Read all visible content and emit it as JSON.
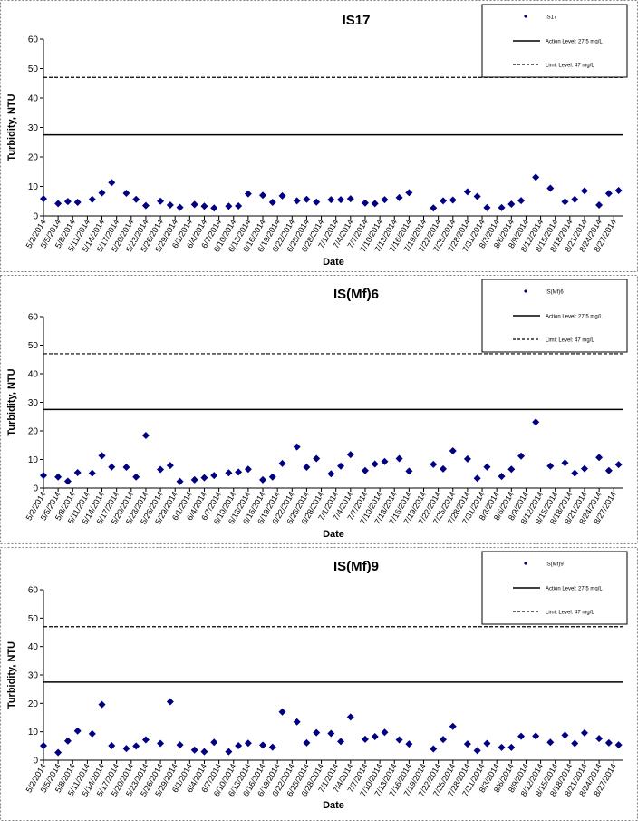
{
  "chart_data": [
    {
      "type": "scatter",
      "title": "IS17",
      "xlabel": "Date",
      "ylabel": "Turbidity, NTU",
      "ylim": [
        0,
        60
      ],
      "yticks": [
        0,
        10,
        20,
        30,
        40,
        50,
        60
      ],
      "xlim": [
        "5/2/2014",
        "8/29/2014"
      ],
      "xtick_labels": [
        "5/2/2014",
        "5/5/2014",
        "5/8/2014",
        "5/11/2014",
        "5/14/2014",
        "5/17/2014",
        "5/20/2014",
        "5/23/2014",
        "5/26/2014",
        "5/29/2014",
        "6/1/2014",
        "6/4/2014",
        "6/7/2014",
        "6/10/2014",
        "6/13/2014",
        "6/16/2014",
        "6/19/2014",
        "6/22/2014",
        "6/25/2014",
        "6/28/2014",
        "7/1/2014",
        "7/4/2014",
        "7/7/2014",
        "7/10/2014",
        "7/13/2014",
        "7/16/2014",
        "7/19/2014",
        "7/22/2014",
        "7/25/2014",
        "7/28/2014",
        "7/31/2014",
        "8/3/2014",
        "8/6/2014",
        "8/9/2014",
        "8/12/2014",
        "8/15/2014",
        "8/18/2014",
        "8/21/2014",
        "8/24/2014",
        "8/27/2014"
      ],
      "action_level": 27.5,
      "limit_level": 47,
      "legend": {
        "placement": "top-right",
        "series_label": "IS17",
        "action_label": "Action Level: 27.5 mg/L",
        "limit_label": "Limit Level: 47 mg/L"
      },
      "marker_color": "#000080",
      "points": [
        [
          "5/2/2014",
          5.8
        ],
        [
          "5/5/2014",
          4.2
        ],
        [
          "5/7/2014",
          4.9
        ],
        [
          "5/9/2014",
          4.6
        ],
        [
          "5/12/2014",
          5.6
        ],
        [
          "5/14/2014",
          7.8
        ],
        [
          "5/16/2014",
          11.3
        ],
        [
          "5/19/2014",
          7.7
        ],
        [
          "5/21/2014",
          5.6
        ],
        [
          "5/23/2014",
          3.5
        ],
        [
          "5/26/2014",
          5.0
        ],
        [
          "5/28/2014",
          3.7
        ],
        [
          "5/30/2014",
          2.9
        ],
        [
          "6/2/2014",
          3.9
        ],
        [
          "6/4/2014",
          3.3
        ],
        [
          "6/6/2014",
          2.7
        ],
        [
          "6/9/2014",
          3.3
        ],
        [
          "6/11/2014",
          3.4
        ],
        [
          "6/13/2014",
          7.5
        ],
        [
          "6/16/2014",
          7.0
        ],
        [
          "6/18/2014",
          4.6
        ],
        [
          "6/20/2014",
          6.8
        ],
        [
          "6/23/2014",
          5.1
        ],
        [
          "6/25/2014",
          5.6
        ],
        [
          "6/27/2014",
          4.7
        ],
        [
          "6/30/2014",
          5.5
        ],
        [
          "7/2/2014",
          5.5
        ],
        [
          "7/4/2014",
          5.8
        ],
        [
          "7/7/2014",
          4.4
        ],
        [
          "7/9/2014",
          4.2
        ],
        [
          "7/11/2014",
          5.5
        ],
        [
          "7/14/2014",
          6.2
        ],
        [
          "7/16/2014",
          7.9
        ],
        [
          "7/21/2014",
          2.7
        ],
        [
          "7/23/2014",
          5.1
        ],
        [
          "7/25/2014",
          5.4
        ],
        [
          "7/28/2014",
          8.2
        ],
        [
          "7/30/2014",
          6.6
        ],
        [
          "8/1/2014",
          2.8
        ],
        [
          "8/4/2014",
          2.8
        ],
        [
          "8/6/2014",
          4.0
        ],
        [
          "8/8/2014",
          5.2
        ],
        [
          "8/11/2014",
          13.1
        ],
        [
          "8/14/2014",
          9.4
        ],
        [
          "8/17/2014",
          4.8
        ],
        [
          "8/19/2014",
          5.6
        ],
        [
          "8/21/2014",
          8.5
        ],
        [
          "8/24/2014",
          3.7
        ],
        [
          "8/26/2014",
          7.6
        ],
        [
          "8/28/2014",
          8.6
        ]
      ]
    },
    {
      "type": "scatter",
      "title": "IS(Mf)6",
      "xlabel": "Date",
      "ylabel": "Turbidity, NTU",
      "ylim": [
        0,
        60
      ],
      "yticks": [
        0,
        10,
        20,
        30,
        40,
        50,
        60
      ],
      "xlim": [
        "5/2/2014",
        "8/29/2014"
      ],
      "xtick_labels": [
        "5/2/2014",
        "5/5/2014",
        "5/8/2014",
        "5/11/2014",
        "5/14/2014",
        "5/17/2014",
        "5/20/2014",
        "5/23/2014",
        "5/26/2014",
        "5/29/2014",
        "6/1/2014",
        "6/4/2014",
        "6/7/2014",
        "6/10/2014",
        "6/13/2014",
        "6/16/2014",
        "6/19/2014",
        "6/22/2014",
        "6/25/2014",
        "6/28/2014",
        "7/1/2014",
        "7/4/2014",
        "7/7/2014",
        "7/10/2014",
        "7/13/2014",
        "7/16/2014",
        "7/19/2014",
        "7/22/2014",
        "7/25/2014",
        "7/28/2014",
        "7/31/2014",
        "8/3/2014",
        "8/6/2014",
        "8/9/2014",
        "8/12/2014",
        "8/15/2014",
        "8/18/2014",
        "8/21/2014",
        "8/24/2014",
        "8/27/2014"
      ],
      "action_level": 27.5,
      "limit_level": 47,
      "legend": {
        "placement": "top-right",
        "series_label": "IS(Mf)6",
        "action_label": "Action Level: 27.5 mg/L",
        "limit_label": "Limit Level: 47 mg/L"
      },
      "marker_color": "#000080",
      "points": [
        [
          "5/2/2014",
          4.4
        ],
        [
          "5/5/2014",
          3.9
        ],
        [
          "5/7/2014",
          2.4
        ],
        [
          "5/9/2014",
          5.4
        ],
        [
          "5/12/2014",
          5.2
        ],
        [
          "5/14/2014",
          11.3
        ],
        [
          "5/16/2014",
          7.4
        ],
        [
          "5/19/2014",
          7.3
        ],
        [
          "5/21/2014",
          3.9
        ],
        [
          "5/23/2014",
          18.4
        ],
        [
          "5/26/2014",
          6.5
        ],
        [
          "5/28/2014",
          7.9
        ],
        [
          "5/30/2014",
          2.3
        ],
        [
          "6/2/2014",
          2.9
        ],
        [
          "6/4/2014",
          3.6
        ],
        [
          "6/6/2014",
          4.4
        ],
        [
          "6/9/2014",
          5.3
        ],
        [
          "6/11/2014",
          5.6
        ],
        [
          "6/13/2014",
          6.6
        ],
        [
          "6/16/2014",
          2.9
        ],
        [
          "6/18/2014",
          3.9
        ],
        [
          "6/20/2014",
          8.6
        ],
        [
          "6/23/2014",
          14.4
        ],
        [
          "6/25/2014",
          7.3
        ],
        [
          "6/27/2014",
          10.3
        ],
        [
          "6/30/2014",
          5.0
        ],
        [
          "7/2/2014",
          7.7
        ],
        [
          "7/4/2014",
          11.7
        ],
        [
          "7/7/2014",
          6.1
        ],
        [
          "7/9/2014",
          8.4
        ],
        [
          "7/11/2014",
          9.3
        ],
        [
          "7/14/2014",
          10.3
        ],
        [
          "7/16/2014",
          5.9
        ],
        [
          "7/21/2014",
          8.3
        ],
        [
          "7/23/2014",
          6.7
        ],
        [
          "7/25/2014",
          13.0
        ],
        [
          "7/28/2014",
          10.2
        ],
        [
          "7/30/2014",
          3.4
        ],
        [
          "8/1/2014",
          7.4
        ],
        [
          "8/4/2014",
          4.1
        ],
        [
          "8/6/2014",
          6.6
        ],
        [
          "8/8/2014",
          11.2
        ],
        [
          "8/11/2014",
          23.1
        ],
        [
          "8/14/2014",
          7.7
        ],
        [
          "8/17/2014",
          8.8
        ],
        [
          "8/19/2014",
          5.2
        ],
        [
          "8/21/2014",
          6.8
        ],
        [
          "8/24/2014",
          10.7
        ],
        [
          "8/26/2014",
          6.1
        ],
        [
          "8/28/2014",
          8.2
        ]
      ]
    },
    {
      "type": "scatter",
      "title": "IS(Mf)9",
      "xlabel": "Date",
      "ylabel": "Turbidity, NTU",
      "ylim": [
        0,
        60
      ],
      "yticks": [
        0,
        10,
        20,
        30,
        40,
        50,
        60
      ],
      "xlim": [
        "5/2/2014",
        "8/29/2014"
      ],
      "xtick_labels": [
        "5/2/2014",
        "5/5/2014",
        "5/8/2014",
        "5/11/2014",
        "5/14/2014",
        "5/17/2014",
        "5/20/2014",
        "5/23/2014",
        "5/26/2014",
        "5/29/2014",
        "6/1/2014",
        "6/4/2014",
        "6/7/2014",
        "6/10/2014",
        "6/13/2014",
        "6/16/2014",
        "6/19/2014",
        "6/22/2014",
        "6/25/2014",
        "6/28/2014",
        "7/1/2014",
        "7/4/2014",
        "7/7/2014",
        "7/10/2014",
        "7/13/2014",
        "7/16/2014",
        "7/19/2014",
        "7/22/2014",
        "7/25/2014",
        "7/28/2014",
        "7/31/2014",
        "8/3/2014",
        "8/6/2014",
        "8/9/2014",
        "8/12/2014",
        "8/15/2014",
        "8/18/2014",
        "8/21/2014",
        "8/24/2014",
        "8/27/2014"
      ],
      "action_level": 27.5,
      "limit_level": 47,
      "legend": {
        "placement": "top-right",
        "series_label": "IS(Mf)9",
        "action_label": "Action Level: 27.5 mg/L",
        "limit_label": "Limit Level: 47 mg/L"
      },
      "marker_color": "#000080",
      "points": [
        [
          "5/2/2014",
          5.1
        ],
        [
          "5/5/2014",
          2.7
        ],
        [
          "5/7/2014",
          6.8
        ],
        [
          "5/9/2014",
          10.3
        ],
        [
          "5/12/2014",
          9.3
        ],
        [
          "5/14/2014",
          19.6
        ],
        [
          "5/16/2014",
          5.1
        ],
        [
          "5/19/2014",
          4.1
        ],
        [
          "5/21/2014",
          5.0
        ],
        [
          "5/23/2014",
          7.2
        ],
        [
          "5/26/2014",
          5.9
        ],
        [
          "5/28/2014",
          20.6
        ],
        [
          "5/30/2014",
          5.4
        ],
        [
          "6/2/2014",
          3.6
        ],
        [
          "6/4/2014",
          3.0
        ],
        [
          "6/6/2014",
          6.3
        ],
        [
          "6/9/2014",
          3.0
        ],
        [
          "6/11/2014",
          5.1
        ],
        [
          "6/13/2014",
          6.0
        ],
        [
          "6/16/2014",
          5.3
        ],
        [
          "6/18/2014",
          4.6
        ],
        [
          "6/20/2014",
          17.0
        ],
        [
          "6/23/2014",
          13.5
        ],
        [
          "6/25/2014",
          6.1
        ],
        [
          "6/27/2014",
          9.7
        ],
        [
          "6/30/2014",
          9.4
        ],
        [
          "7/2/2014",
          6.6
        ],
        [
          "7/4/2014",
          15.2
        ],
        [
          "7/7/2014",
          7.4
        ],
        [
          "7/9/2014",
          8.3
        ],
        [
          "7/11/2014",
          9.8
        ],
        [
          "7/14/2014",
          7.2
        ],
        [
          "7/16/2014",
          5.7
        ],
        [
          "7/21/2014",
          4.0
        ],
        [
          "7/23/2014",
          7.3
        ],
        [
          "7/25/2014",
          11.9
        ],
        [
          "7/28/2014",
          5.7
        ],
        [
          "7/30/2014",
          3.4
        ],
        [
          "8/1/2014",
          5.9
        ],
        [
          "8/4/2014",
          4.5
        ],
        [
          "8/6/2014",
          4.5
        ],
        [
          "8/8/2014",
          8.4
        ],
        [
          "8/11/2014",
          8.5
        ],
        [
          "8/14/2014",
          6.3
        ],
        [
          "8/17/2014",
          8.8
        ],
        [
          "8/19/2014",
          5.9
        ],
        [
          "8/21/2014",
          9.6
        ],
        [
          "8/24/2014",
          7.6
        ],
        [
          "8/26/2014",
          6.1
        ],
        [
          "8/28/2014",
          5.4
        ]
      ]
    }
  ]
}
